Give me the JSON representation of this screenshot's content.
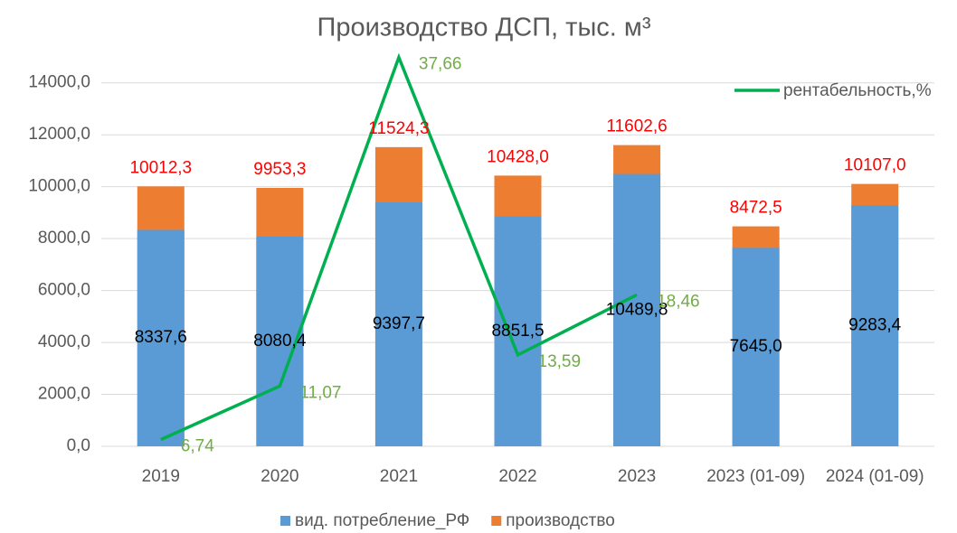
{
  "chart_data": {
    "type": "bar",
    "title": "Производство ДСП, тыс. м³",
    "categories": [
      "2019",
      "2020",
      "2021",
      "2022",
      "2023",
      "2023 (01-09)",
      "2024 (01-09)"
    ],
    "series": [
      {
        "name": "вид. потребление_РФ",
        "color": "#5b9bd5",
        "label_color": "#000000",
        "values": [
          8337.6,
          8080.4,
          9397.7,
          8851.5,
          10489.8,
          7645.0,
          9283.4
        ],
        "value_labels": [
          "8337,6",
          "8080,4",
          "9397,7",
          "8851,5",
          "10489,8",
          "7645,0",
          "9283,4"
        ]
      },
      {
        "name": "производство",
        "color": "#ed7d31",
        "label_color": "#ff0000",
        "values": [
          10012.3,
          9953.3,
          11524.3,
          10428.0,
          11602.6,
          8472.5,
          10107.0
        ],
        "value_labels": [
          "10012,3",
          "9953,3",
          "11524,3",
          "10428,0",
          "11602,6",
          "8472,5",
          "10107,0"
        ]
      },
      {
        "name": "рентабельность,%",
        "type": "line",
        "axis": "y2",
        "color": "#00b050",
        "label_color": "#70ad47",
        "values": [
          6.74,
          11.07,
          37.66,
          13.59,
          18.46,
          null,
          null
        ],
        "value_labels": [
          "6,74",
          "11,07",
          "37,66",
          "13,59",
          "18,46",
          null,
          null
        ]
      }
    ],
    "overlap": true,
    "ylim": [
      0,
      15000
    ],
    "yticks": [
      {
        "value": 0,
        "label": "0,0"
      },
      {
        "value": 2000,
        "label": "2000,0"
      },
      {
        "value": 4000,
        "label": "4000,0"
      },
      {
        "value": 6000,
        "label": "6000,0"
      },
      {
        "value": 8000,
        "label": "8000,0"
      },
      {
        "value": 10000,
        "label": "10000,0"
      },
      {
        "value": 12000,
        "label": "12000,0"
      },
      {
        "value": 14000,
        "label": "14000,0"
      }
    ],
    "y2lim": [
      6.2,
      37.7
    ],
    "grid": true
  }
}
